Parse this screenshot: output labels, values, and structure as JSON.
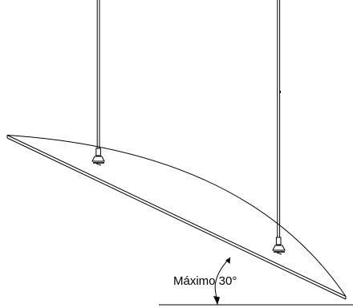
{
  "diagram": {
    "angle_label": "Máximo 30°",
    "max_tilt_deg": 30,
    "hanger_count": 2,
    "stroke_color": "#000000",
    "background_color": "#ffffff"
  }
}
